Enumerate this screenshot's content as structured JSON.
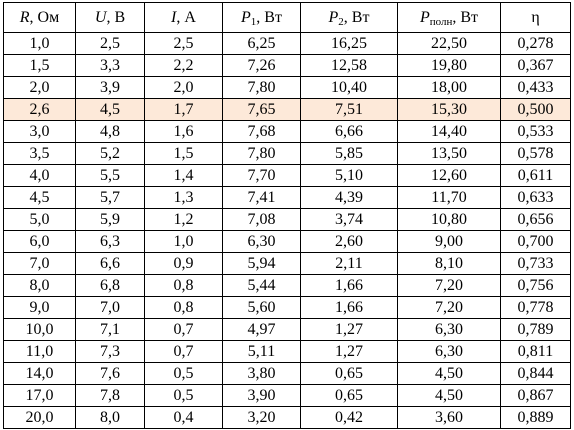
{
  "table": {
    "header": [
      {
        "symbol": "R",
        "unit": ", Ом"
      },
      {
        "symbol": "U",
        "unit": ", В"
      },
      {
        "symbol": "I",
        "unit": ", А"
      },
      {
        "symbol": "P",
        "sub": "1",
        "unit": ", Вт"
      },
      {
        "symbol": "P",
        "sub": "2",
        "unit": ", Вт"
      },
      {
        "symbol": "P",
        "sub": "полн",
        "unit": ", Вт"
      },
      {
        "plain": "η"
      }
    ],
    "rows": [
      [
        "1,0",
        "2,5",
        "2,5",
        "6,25",
        "16,25",
        "22,50",
        "0,278"
      ],
      [
        "1,5",
        "3,3",
        "2,2",
        "7,26",
        "12,58",
        "19,80",
        "0,367"
      ],
      [
        "2,0",
        "3,9",
        "2,0",
        "7,80",
        "10,40",
        "18,00",
        "0,433"
      ],
      [
        "2,6",
        "4,5",
        "1,7",
        "7,65",
        "7,51",
        "15,30",
        "0,500"
      ],
      [
        "3,0",
        "4,8",
        "1,6",
        "7,68",
        "6,66",
        "14,40",
        "0,533"
      ],
      [
        "3,5",
        "5,2",
        "1,5",
        "7,80",
        "5,85",
        "13,50",
        "0,578"
      ],
      [
        "4,0",
        "5,5",
        "1,4",
        "7,70",
        "5,10",
        "12,60",
        "0,611"
      ],
      [
        "4,5",
        "5,7",
        "1,3",
        "7,41",
        "4,39",
        "11,70",
        "0,633"
      ],
      [
        "5,0",
        "5,9",
        "1,2",
        "7,08",
        "3,74",
        "10,80",
        "0,656"
      ],
      [
        "6,0",
        "6,3",
        "1,0",
        "6,30",
        "2,60",
        "9,00",
        "0,700"
      ],
      [
        "7,0",
        "6,6",
        "0,9",
        "5,94",
        "2,11",
        "8,10",
        "0,733"
      ],
      [
        "8,0",
        "6,8",
        "0,8",
        "5,44",
        "1,66",
        "7,20",
        "0,756"
      ],
      [
        "9,0",
        "7,0",
        "0,8",
        "5,60",
        "1,66",
        "7,20",
        "0,778"
      ],
      [
        "10,0",
        "7,1",
        "0,7",
        "4,97",
        "1,27",
        "6,30",
        "0,789"
      ],
      [
        "11,0",
        "7,3",
        "0,7",
        "5,11",
        "1,27",
        "6,30",
        "0,811"
      ],
      [
        "14,0",
        "7,6",
        "0,5",
        "3,80",
        "0,65",
        "4,50",
        "0,844"
      ],
      [
        "17,0",
        "7,8",
        "0,5",
        "3,90",
        "0,65",
        "4,50",
        "0,867"
      ],
      [
        "20,0",
        "8,0",
        "0,4",
        "3,20",
        "0,42",
        "3,60",
        "0,889"
      ]
    ]
  }
}
